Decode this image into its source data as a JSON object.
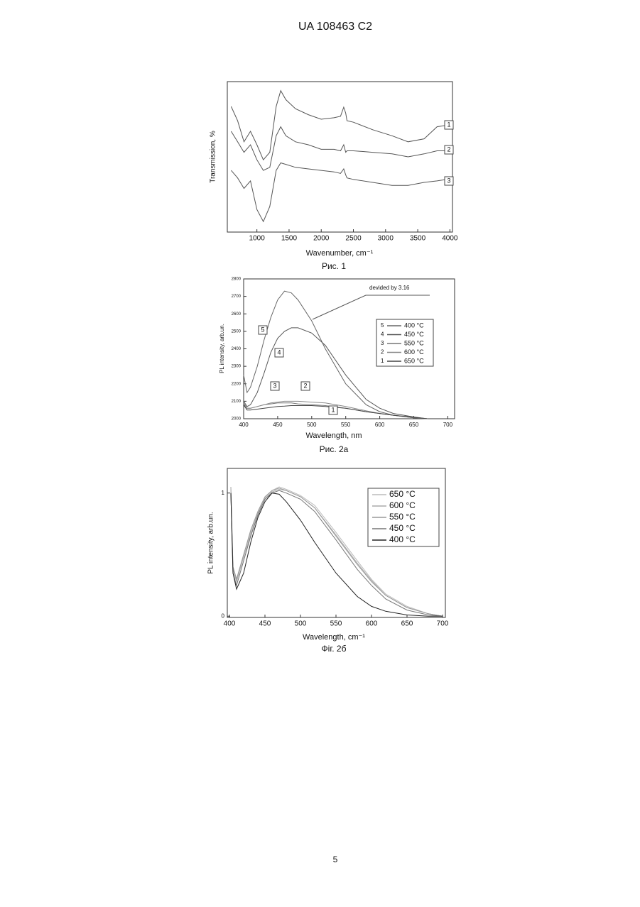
{
  "header": "UA   108463   C2",
  "page_number": "5",
  "chart_data": [
    {
      "type": "line",
      "caption": "Рис. 1",
      "x_label": "Wavenumber, cm⁻¹",
      "y_label": "Transmission, %",
      "xlim": [
        540,
        4040
      ],
      "ylim": [
        0,
        100
      ],
      "xticks": [
        1000,
        1500,
        2000,
        2500,
        3000,
        3500,
        4000
      ],
      "x": [
        600,
        700,
        800,
        900,
        1000,
        1100,
        1200,
        1300,
        1370,
        1450,
        1600,
        1800,
        2000,
        2200,
        2300,
        2350,
        2380,
        2400,
        2500,
        2800,
        3100,
        3350,
        3600,
        3800,
        3950
      ],
      "series": [
        {
          "label": "1",
          "color": "#555555",
          "values": [
            83.5,
            74,
            60,
            67,
            58,
            48,
            53,
            83.5,
            94,
            88,
            82,
            78,
            75,
            76,
            77,
            83,
            79,
            74,
            73,
            68,
            64,
            60,
            62,
            70,
            71
          ]
        },
        {
          "label": "2",
          "color": "#555555",
          "values": [
            67,
            60,
            53,
            58,
            48,
            41,
            43,
            64,
            70,
            64,
            60,
            58,
            55,
            55,
            54,
            58,
            53,
            54,
            54,
            53,
            52,
            50,
            52,
            54,
            54
          ]
        },
        {
          "label": "3",
          "color": "#555555",
          "values": [
            41,
            36,
            29,
            34,
            15,
            7,
            17,
            41,
            46,
            45,
            43,
            42,
            41,
            40,
            39,
            42,
            38,
            36,
            35,
            33,
            31,
            31,
            33,
            34,
            35
          ]
        }
      ]
    },
    {
      "type": "line",
      "caption": "Рис. 2а",
      "x_label": "Wavelength, nm",
      "y_label": "PL intensity, arb.un.",
      "annotation": "devided by 3.16",
      "xlim": [
        400,
        710
      ],
      "ylim": [
        2000,
        2800
      ],
      "xticks": [
        400,
        450,
        500,
        550,
        600,
        650,
        700
      ],
      "yticks": [
        2000,
        2100,
        2200,
        2300,
        2400,
        2500,
        2600,
        2700,
        2800
      ],
      "x": [
        400,
        405,
        410,
        420,
        430,
        440,
        450,
        460,
        470,
        480,
        500,
        520,
        550,
        580,
        600,
        620,
        650,
        670
      ],
      "series": [
        {
          "label": "5",
          "name": "400 °C",
          "color": "#666666",
          "values": [
            2250,
            2150,
            2180,
            2300,
            2450,
            2580,
            2680,
            2730,
            2720,
            2680,
            2560,
            2400,
            2200,
            2080,
            2040,
            2020,
            2005,
            2000
          ]
        },
        {
          "label": "4",
          "name": "450 °C",
          "color": "#555555",
          "values": [
            2100,
            2070,
            2080,
            2150,
            2260,
            2380,
            2460,
            2500,
            2520,
            2520,
            2490,
            2420,
            2250,
            2110,
            2060,
            2030,
            2010,
            2000
          ]
        },
        {
          "label": "3",
          "name": "550 °C",
          "color": "#777777",
          "values": [
            2090,
            2060,
            2060,
            2070,
            2080,
            2085,
            2090,
            2090,
            2090,
            2085,
            2080,
            2075,
            2060,
            2040,
            2030,
            2020,
            2005,
            2000
          ]
        },
        {
          "label": "2",
          "name": "600 °C",
          "color": "#888888",
          "values": [
            2085,
            2060,
            2060,
            2070,
            2080,
            2090,
            2095,
            2100,
            2100,
            2100,
            2095,
            2090,
            2070,
            2045,
            2030,
            2020,
            2008,
            2000
          ]
        },
        {
          "label": "1",
          "name": "650 °C",
          "color": "#444444",
          "values": [
            2080,
            2050,
            2050,
            2055,
            2060,
            2065,
            2070,
            2072,
            2075,
            2075,
            2075,
            2070,
            2060,
            2040,
            2030,
            2020,
            2008,
            2000
          ]
        }
      ]
    },
    {
      "type": "line",
      "caption": "Фіг. 2б",
      "x_label": "Wavelength, cm⁻¹",
      "y_label": "PL intensity, arb.un.",
      "xlim": [
        397,
        704
      ],
      "ylim": [
        -0.01,
        1.2
      ],
      "xticks": [
        400,
        450,
        500,
        550,
        600,
        650,
        700
      ],
      "yticks": [
        0,
        1
      ],
      "x": [
        402,
        405,
        410,
        420,
        430,
        440,
        450,
        460,
        470,
        480,
        500,
        520,
        550,
        580,
        600,
        620,
        650,
        680,
        700
      ],
      "series": [
        {
          "name": "650 °C",
          "color": "#bbbbbb",
          "values": [
            1.05,
            0.4,
            0.3,
            0.5,
            0.68,
            0.84,
            0.96,
            1.02,
            1.05,
            1.03,
            0.98,
            0.9,
            0.68,
            0.45,
            0.3,
            0.18,
            0.08,
            0.02,
            0
          ]
        },
        {
          "name": "600 °C",
          "color": "#aaaaaa",
          "values": [
            1.05,
            0.38,
            0.28,
            0.48,
            0.66,
            0.83,
            0.95,
            1.01,
            1.03,
            1.02,
            0.97,
            0.88,
            0.66,
            0.43,
            0.29,
            0.17,
            0.07,
            0.02,
            0
          ]
        },
        {
          "name": "550 °C",
          "color": "#999999",
          "values": [
            1.0,
            0.4,
            0.3,
            0.5,
            0.7,
            0.85,
            0.97,
            1.02,
            1.04,
            1.02,
            0.97,
            0.88,
            0.65,
            0.42,
            0.28,
            0.17,
            0.07,
            0.02,
            0
          ]
        },
        {
          "name": "450 °C",
          "color": "#777777",
          "values": [
            1.0,
            0.35,
            0.25,
            0.45,
            0.65,
            0.82,
            0.95,
            1.0,
            1.02,
            1.0,
            0.95,
            0.85,
            0.62,
            0.38,
            0.25,
            0.14,
            0.05,
            0.01,
            0
          ]
        },
        {
          "name": "400 °C",
          "color": "#222222",
          "values": [
            1.0,
            0.35,
            0.22,
            0.35,
            0.6,
            0.8,
            0.93,
            1.0,
            0.99,
            0.93,
            0.78,
            0.6,
            0.35,
            0.16,
            0.08,
            0.04,
            0.01,
            0,
            0
          ]
        }
      ]
    }
  ]
}
